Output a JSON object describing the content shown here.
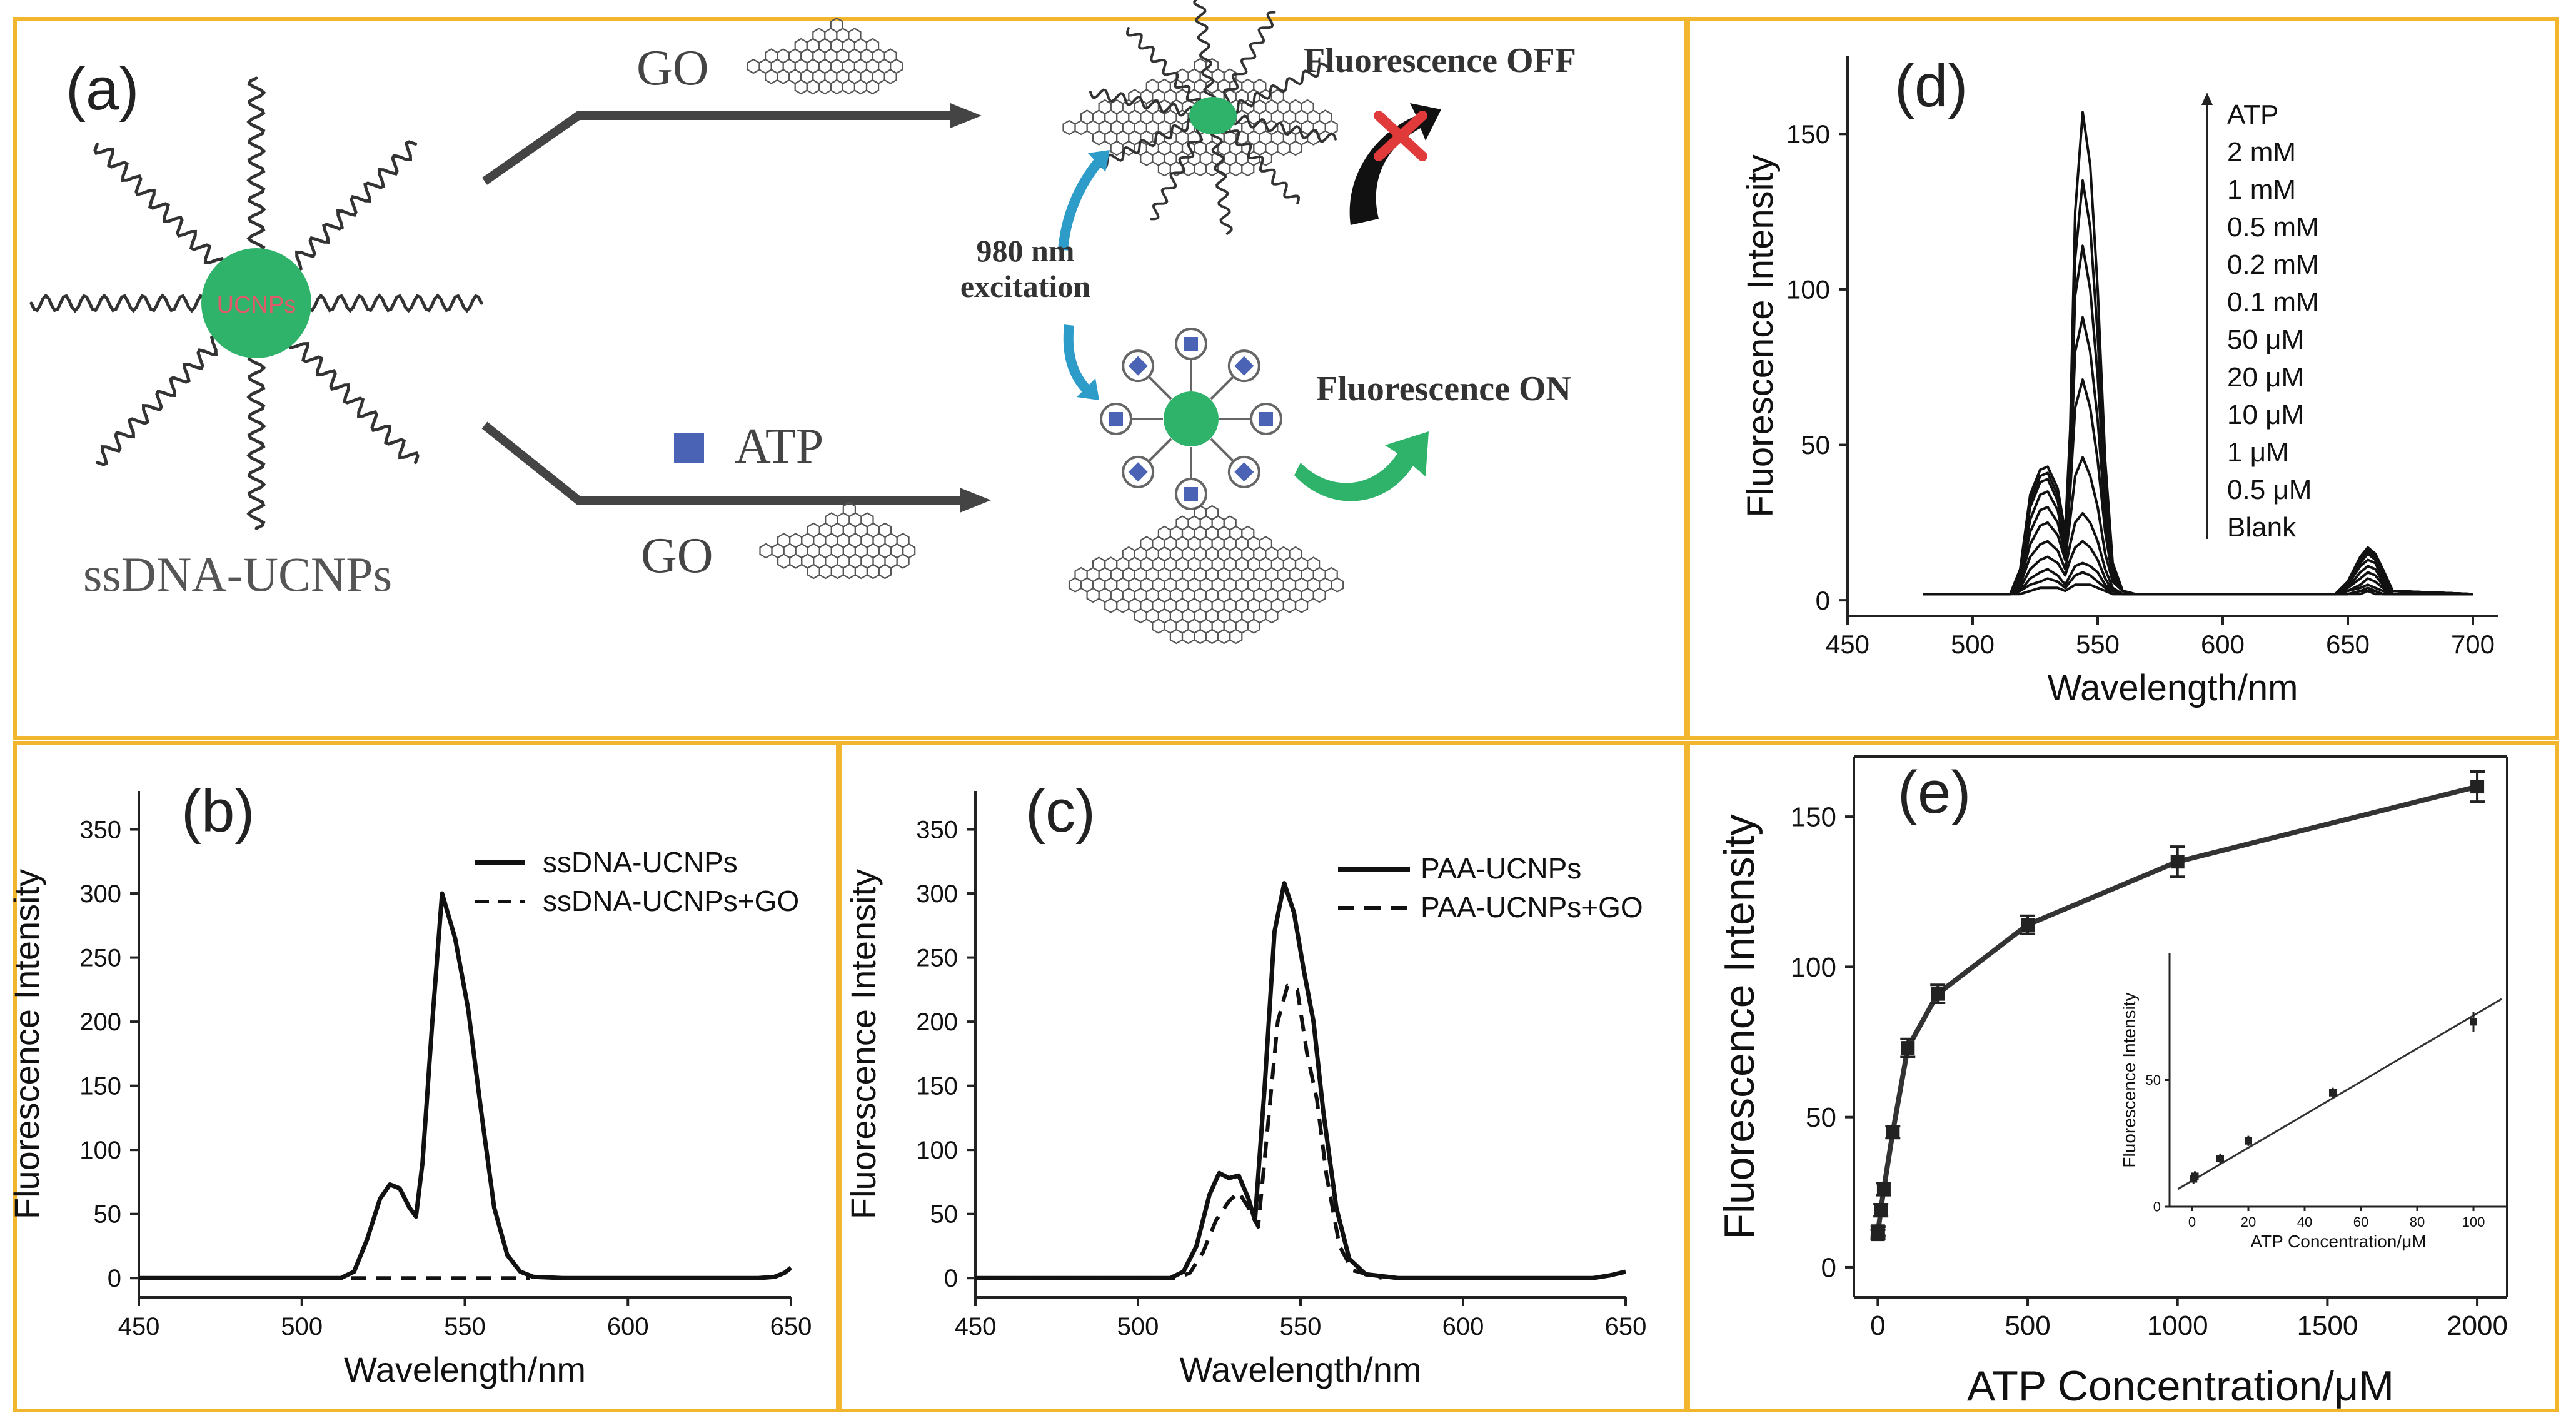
{
  "figure": {
    "frame_color": "#F2B52E",
    "ucnp_color": "#2FB36A",
    "atp_color": "#4A63B5",
    "arrow_teal": "#2E9CC9",
    "cross_color": "#E03A3A"
  },
  "panel_a": {
    "label": "(a)",
    "core_label": "UCNPs",
    "ssdna_label": "ssDNA-UCNPs",
    "go_top": "GO",
    "go_bottom": "GO",
    "atp_label": "ATP",
    "fluorescence_off": "Fluorescence OFF",
    "fluorescence_on": "Fluorescence ON",
    "excitation_line1": "980 nm",
    "excitation_line2": "excitation"
  },
  "chart_data": [
    {
      "panel": "b",
      "type": "line",
      "label": "(b)",
      "xlabel": "Wavelength/nm",
      "ylabel": "Fluorescence Intensity",
      "xlim": [
        450,
        650
      ],
      "ylim": [
        -15,
        380
      ],
      "xticks": [
        450,
        500,
        550,
        600,
        650
      ],
      "yticks": [
        0,
        50,
        100,
        150,
        200,
        250,
        300,
        350
      ],
      "legend": [
        "ssDNA-UCNPs",
        "ssDNA-UCNPs+GO"
      ],
      "series": [
        {
          "name": "ssDNA-UCNPs",
          "style": "solid",
          "x": [
            450,
            512,
            516,
            520,
            524,
            527,
            530,
            533,
            535,
            537,
            540,
            543,
            547,
            551,
            555,
            559,
            563,
            567,
            571,
            580,
            640,
            645,
            648,
            650
          ],
          "y": [
            0,
            0,
            5,
            30,
            62,
            73,
            70,
            55,
            48,
            90,
            200,
            300,
            265,
            210,
            130,
            55,
            18,
            5,
            1,
            0,
            0,
            1,
            4,
            8
          ]
        },
        {
          "name": "ssDNA-UCNPs+GO",
          "style": "dashed",
          "x": [
            515,
            570
          ],
          "y": [
            0,
            0
          ]
        }
      ]
    },
    {
      "panel": "c",
      "type": "line",
      "label": "(c)",
      "xlabel": "Wavelength/nm",
      "ylabel": "Fluorescence Intensity",
      "xlim": [
        450,
        650
      ],
      "ylim": [
        -15,
        380
      ],
      "xticks": [
        450,
        500,
        550,
        600,
        650
      ],
      "yticks": [
        0,
        50,
        100,
        150,
        200,
        250,
        300,
        350
      ],
      "legend": [
        "PAA-UCNPs",
        "PAA-UCNPs+GO"
      ],
      "series": [
        {
          "name": "PAA-UCNPs",
          "style": "solid",
          "x": [
            450,
            510,
            514,
            518,
            522,
            525,
            528,
            531,
            534,
            536,
            539,
            542,
            545,
            548,
            551,
            554,
            557,
            561,
            565,
            570,
            580,
            640,
            645,
            650
          ],
          "y": [
            0,
            0,
            5,
            25,
            65,
            82,
            78,
            80,
            62,
            45,
            150,
            270,
            308,
            285,
            240,
            200,
            130,
            55,
            15,
            3,
            0,
            0,
            2,
            5
          ]
        },
        {
          "name": "PAA-UCNPs+GO",
          "style": "dashed",
          "x": [
            450,
            512,
            516,
            520,
            524,
            528,
            531,
            534,
            537,
            540,
            543,
            546,
            549,
            552,
            555,
            558,
            562,
            566,
            575
          ],
          "y": [
            0,
            0,
            4,
            20,
            45,
            60,
            67,
            55,
            40,
            120,
            200,
            228,
            225,
            175,
            140,
            80,
            25,
            6,
            0
          ]
        }
      ]
    },
    {
      "panel": "d",
      "type": "line",
      "label": "(d)",
      "xlabel": "Wavelength/nm",
      "ylabel": "Fluorescence Intensity",
      "xlim": [
        450,
        710
      ],
      "ylim": [
        -5,
        175
      ],
      "xticks": [
        450,
        500,
        550,
        600,
        650,
        700
      ],
      "yticks": [
        0,
        50,
        100,
        150
      ],
      "legend": [
        "ATP",
        "2 mM",
        "1 mM",
        "0.5 mM",
        "0.2 mM",
        "0.1 mM",
        "50 μM",
        "20 μM",
        "10 μM",
        "1 μM",
        "0.5 μM",
        "Blank"
      ],
      "x": [
        480,
        515,
        519,
        523,
        527,
        530,
        534,
        537,
        539,
        541,
        544,
        547,
        550,
        553,
        556,
        560,
        565,
        645,
        650,
        655,
        658,
        661,
        664,
        668,
        700
      ],
      "base": [
        2,
        2,
        2,
        2,
        2,
        2,
        2,
        2,
        2,
        2,
        2,
        2,
        2,
        2,
        2,
        2,
        2,
        2,
        2,
        2,
        2,
        2,
        2,
        2,
        2
      ],
      "series": [
        {
          "name": "2 mM",
          "y": [
            2,
            2,
            10,
            34,
            42,
            43,
            36,
            22,
            55,
            125,
            157,
            140,
            100,
            45,
            12,
            3,
            2,
            2,
            6,
            14,
            17,
            15,
            10,
            3,
            2
          ]
        },
        {
          "name": "1 mM",
          "y": [
            2,
            2,
            9,
            32,
            40,
            41,
            34,
            20,
            52,
            110,
            135,
            120,
            85,
            38,
            10,
            3,
            2,
            2,
            6,
            13,
            16,
            14,
            9,
            3,
            2
          ]
        },
        {
          "name": "0.5 mM",
          "y": [
            2,
            2,
            9,
            30,
            38,
            39,
            32,
            19,
            48,
            98,
            114,
            100,
            72,
            33,
            9,
            3,
            2,
            2,
            5,
            12,
            15,
            13,
            8,
            3,
            2
          ]
        },
        {
          "name": "0.2 mM",
          "y": [
            2,
            2,
            8,
            26,
            34,
            35,
            29,
            17,
            42,
            80,
            91,
            80,
            58,
            27,
            8,
            3,
            2,
            2,
            5,
            11,
            13,
            12,
            7,
            3,
            2
          ]
        },
        {
          "name": "0.1 mM",
          "y": [
            2,
            2,
            7,
            22,
            29,
            30,
            25,
            15,
            35,
            62,
            71,
            62,
            45,
            22,
            7,
            3,
            2,
            2,
            4,
            9,
            11,
            10,
            6,
            3,
            2
          ]
        },
        {
          "name": "50 μM",
          "y": [
            2,
            2,
            6,
            18,
            24,
            25,
            21,
            13,
            26,
            40,
            46,
            40,
            30,
            15,
            6,
            3,
            2,
            2,
            4,
            7,
            9,
            8,
            5,
            2,
            2
          ]
        },
        {
          "name": "20 μM",
          "y": [
            2,
            2,
            5,
            14,
            18,
            19,
            16,
            10,
            18,
            25,
            28,
            25,
            19,
            10,
            4,
            2,
            2,
            2,
            3,
            5,
            7,
            6,
            4,
            2,
            2
          ]
        },
        {
          "name": "10 μM",
          "y": [
            2,
            2,
            4,
            10,
            13,
            14,
            12,
            8,
            13,
            17,
            19,
            17,
            13,
            7,
            3,
            2,
            2,
            2,
            3,
            4,
            5,
            4,
            3,
            2,
            2
          ]
        },
        {
          "name": "1 μM",
          "y": [
            2,
            2,
            3,
            7,
            9,
            10,
            8,
            5,
            8,
            11,
            12,
            11,
            9,
            5,
            3,
            2,
            2,
            2,
            2,
            3,
            4,
            3,
            2,
            2,
            2
          ]
        },
        {
          "name": "0.5 μM",
          "y": [
            2,
            2,
            3,
            5,
            6,
            7,
            6,
            4,
            6,
            8,
            9,
            8,
            6,
            4,
            2,
            2,
            2,
            2,
            2,
            3,
            3,
            3,
            2,
            2,
            2
          ]
        },
        {
          "name": "Blank",
          "y": [
            2,
            2,
            2,
            3,
            4,
            4,
            4,
            3,
            4,
            5,
            5,
            5,
            4,
            3,
            2,
            2,
            2,
            2,
            2,
            2,
            3,
            2,
            2,
            2,
            2
          ]
        }
      ]
    },
    {
      "panel": "e",
      "type": "line",
      "label": "(e)",
      "xlabel": "ATP Concentration/μM",
      "ylabel": "Fluorescence Intensity",
      "xlim": [
        -80,
        2100
      ],
      "ylim": [
        -10,
        170
      ],
      "xticks": [
        0,
        500,
        1000,
        1500,
        2000
      ],
      "yticks": [
        0,
        50,
        100,
        150
      ],
      "x": [
        0.5,
        1,
        10,
        20,
        50,
        100,
        200,
        500,
        1000,
        2000
      ],
      "y": [
        11,
        12,
        19,
        26,
        45,
        73,
        91,
        114,
        135,
        160
      ],
      "err": [
        1.5,
        1.5,
        2,
        2,
        2,
        3,
        3,
        3,
        5,
        5
      ],
      "inset": {
        "xlabel": "ATP Concentration/μM",
        "ylabel": "Fluorescence Intensity",
        "xlim": [
          -8,
          112
        ],
        "ylim": [
          0,
          100
        ],
        "xticks": [
          0,
          20,
          40,
          60,
          80,
          100
        ],
        "yticks": [
          0,
          50
        ],
        "x": [
          0.5,
          1,
          10,
          20,
          50,
          100
        ],
        "y": [
          11,
          12,
          19,
          26,
          45,
          73
        ],
        "err": [
          2,
          2,
          2,
          2,
          2,
          4
        ],
        "fit": {
          "x": [
            -5,
            110
          ],
          "y": [
            7,
            82
          ]
        }
      }
    }
  ]
}
